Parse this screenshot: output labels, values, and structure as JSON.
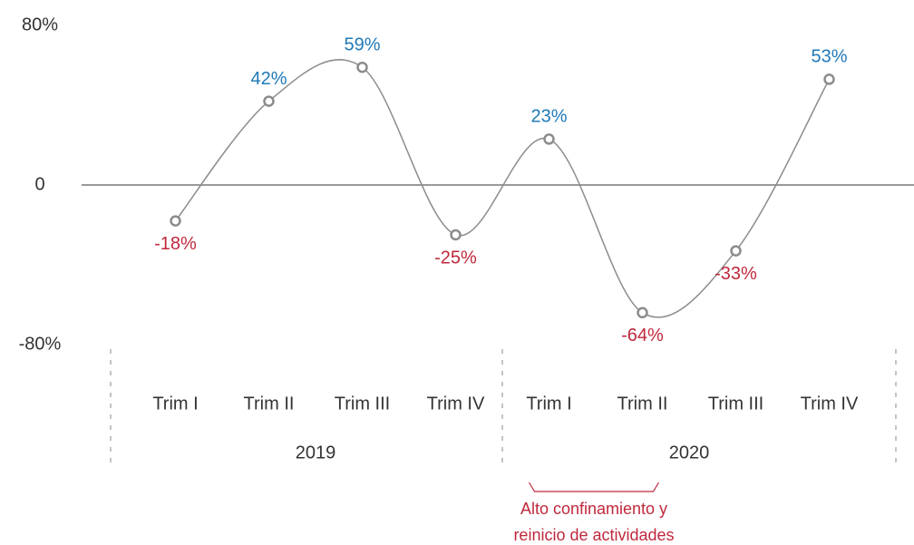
{
  "chart_data": {
    "type": "line",
    "categories": [
      "Trim I",
      "Trim II",
      "Trim III",
      "Trim IV",
      "Trim I",
      "Trim II",
      "Trim III",
      "Trim IV"
    ],
    "x_groups": [
      "2019",
      "2020"
    ],
    "values": [
      -18,
      42,
      59,
      -25,
      23,
      -64,
      -33,
      53
    ],
    "value_labels": [
      "-18%",
      "42%",
      "59%",
      "-25%",
      "23%",
      "-64%",
      "-33%",
      "53%"
    ],
    "color": "#8c8c8c",
    "positive_color": "#1f78b8",
    "negative_color": "#c0283c",
    "ylim": [
      -80,
      80
    ],
    "yticks": [
      {
        "value": -80,
        "label": "-80%"
      },
      0,
      {
        "value": 80,
        "label": "80%"
      }
    ],
    "annotation": [
      "Alto confinamiento y",
      "reinicio de actividades"
    ],
    "annotation_color": "#c0283c"
  }
}
